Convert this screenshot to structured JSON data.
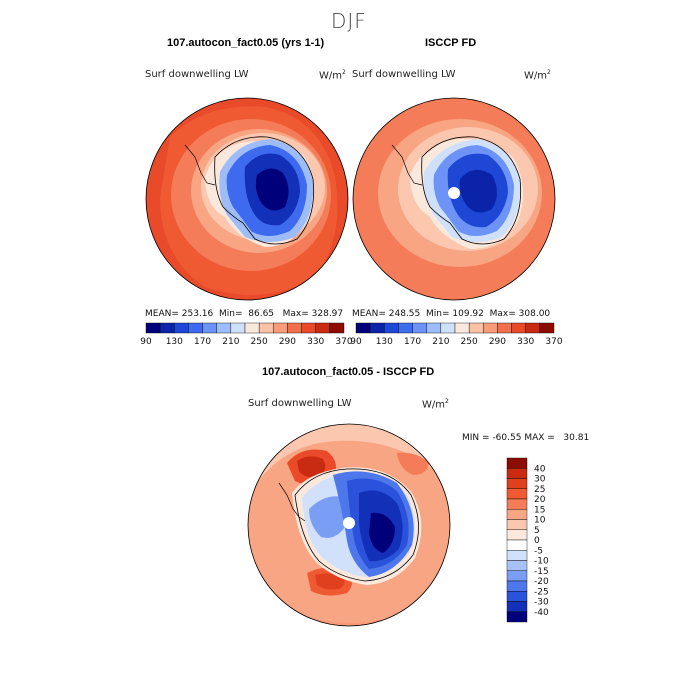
{
  "suptitle": "DJF",
  "panels": [
    {
      "title": "107.autocon_fact0.05 (yrs 1-1)",
      "variable": "Surf downwelling LW",
      "units": "W/m",
      "units_exp": "2",
      "stats": {
        "mean_label": "MEAN=",
        "mean": "253.16",
        "min_label": "Min=",
        "min": "86.65",
        "max_label": "Max=",
        "max": "328.97"
      }
    },
    {
      "title": "ISCCP FD",
      "variable": "Surf downwelling LW",
      "units": "W/m",
      "units_exp": "2",
      "stats": {
        "mean_label": "MEAN=",
        "mean": "248.55",
        "min_label": "Min=",
        "min": "109.92",
        "max_label": "Max=",
        "max": "308.00"
      }
    },
    {
      "title": "107.autocon_fact0.05 - ISCCP FD",
      "variable": "Surf downwelling LW",
      "units": "W/m",
      "units_exp": "2",
      "stats": {
        "min_label": "MIN =",
        "min": "-60.55",
        "max_label": "MAX =",
        "max": "30.81"
      }
    }
  ],
  "colorbar_top": {
    "labels": [
      "90",
      "130",
      "170",
      "210",
      "250",
      "290",
      "330",
      "370"
    ],
    "colors": [
      "#00007a",
      "#0a23a8",
      "#1e47d6",
      "#3e6af0",
      "#6c93f5",
      "#9dbcf8",
      "#cfe0fb",
      "#fbe8dc",
      "#f9c2a4",
      "#f79b78",
      "#f2704e",
      "#ea4a2a",
      "#c92a12",
      "#8c0c00"
    ]
  },
  "colorbar_diff": {
    "labels": [
      "40",
      "30",
      "25",
      "20",
      "15",
      "10",
      "5",
      "0",
      "-5",
      "-10",
      "-15",
      "-20",
      "-25",
      "-30",
      "-40"
    ],
    "colors": [
      "#8c0c00",
      "#c92a12",
      "#e0401d",
      "#ef5a33",
      "#f47c58",
      "#f8a583",
      "#fbc7ae",
      "#fbe8dc",
      "#ffffff",
      "#d2e1fb",
      "#a7c1f7",
      "#7a9ef3",
      "#4d77ea",
      "#2a52da",
      "#1231b8",
      "#00007a"
    ]
  },
  "icon_names": [
    "polar-map",
    "antarctica-outline",
    "south-pole-mask"
  ]
}
